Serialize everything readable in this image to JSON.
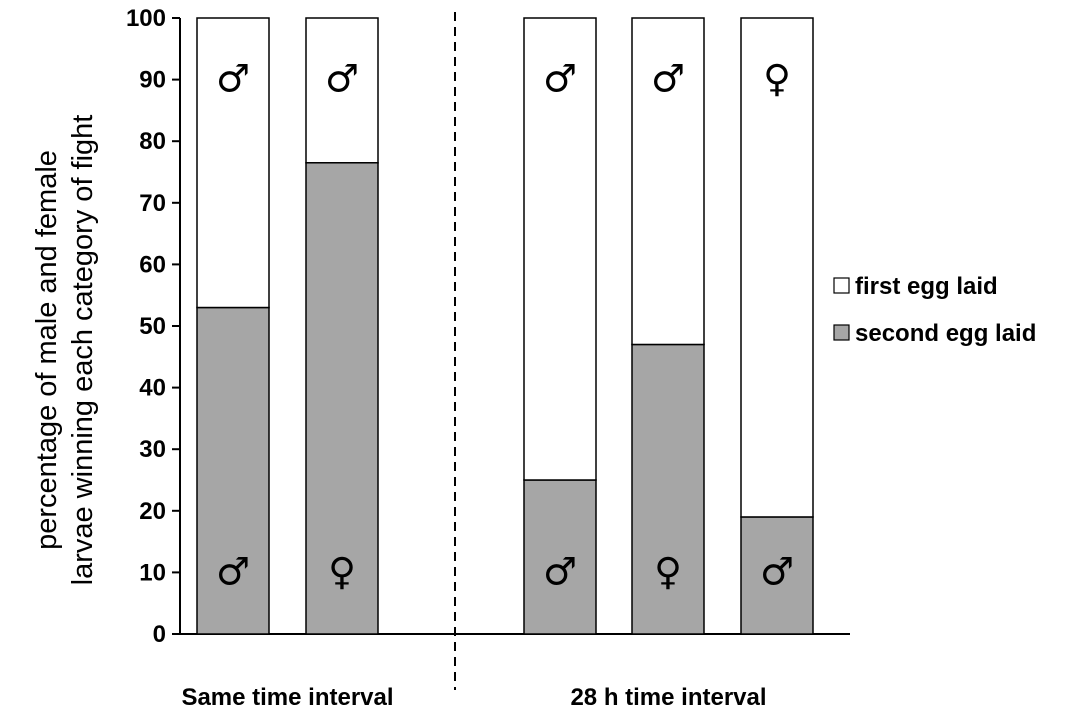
{
  "chart_data": {
    "type": "bar",
    "stacked": true,
    "ylabel": [
      "percentage of male and female",
      "larvae winning each category of fight"
    ],
    "ylim": [
      0,
      100
    ],
    "yticks": [
      0,
      10,
      20,
      30,
      40,
      50,
      60,
      70,
      80,
      90,
      100
    ],
    "grid": false,
    "legend_position": "right",
    "groups": [
      {
        "label": "Same time interval",
        "bars": [
          0,
          1
        ]
      },
      {
        "label": "28 h time interval",
        "bars": [
          2,
          3,
          4
        ]
      }
    ],
    "series": [
      {
        "name": "second egg laid",
        "color": "#a6a6a6",
        "values": [
          53,
          76.5,
          25,
          47,
          19
        ]
      },
      {
        "name": "first egg laid",
        "color": "#ffffff",
        "values": [
          47,
          23.5,
          75,
          53,
          81
        ]
      }
    ],
    "annotations": {
      "second_egg_winner": [
        "♂",
        "♀",
        "♂",
        "♀",
        "♂"
      ],
      "first_egg_winner": [
        "♂",
        "♂",
        "♂",
        "♂",
        "♀"
      ]
    }
  }
}
